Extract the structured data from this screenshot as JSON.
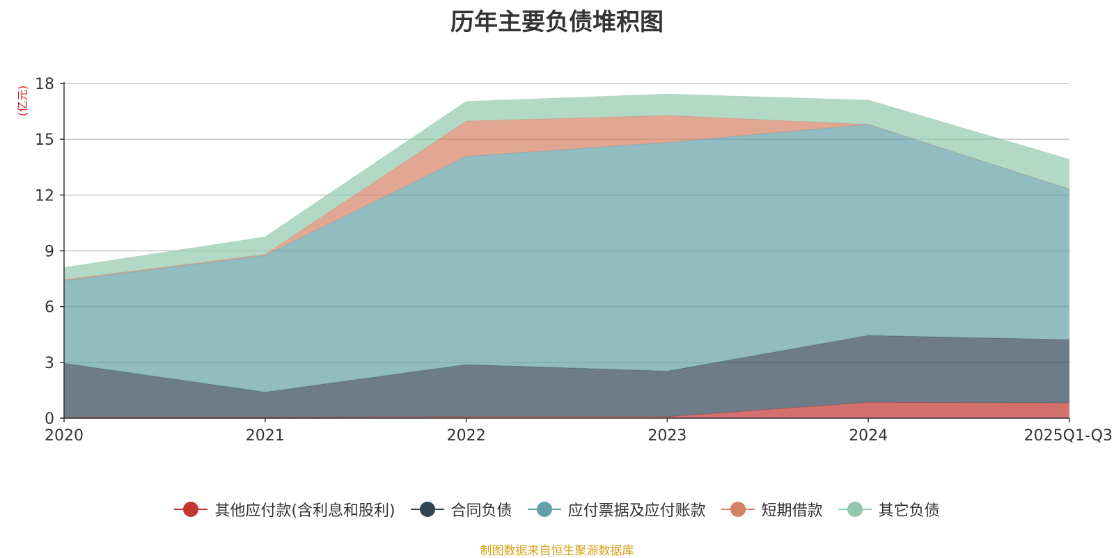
{
  "chart_data": {
    "type": "area",
    "stacked": true,
    "title": "历年主要负债堆积图",
    "ylabel": "(亿元)",
    "xlabel": "",
    "categories": [
      "2020",
      "2021",
      "2022",
      "2023",
      "2024",
      "2025Q1-Q3"
    ],
    "ylim": [
      0,
      18
    ],
    "yticks": [
      0,
      3,
      6,
      9,
      12,
      15,
      18
    ],
    "grid": true,
    "legend_position": "bottom",
    "series": [
      {
        "name": "其他应付款(含利息和股利)",
        "color": "#c23531",
        "values": [
          0.05,
          0.05,
          0.08,
          0.08,
          0.85,
          0.82
        ]
      },
      {
        "name": "合同负债",
        "color": "#2f4554",
        "values": [
          2.9,
          1.35,
          2.8,
          2.45,
          3.6,
          3.4
        ]
      },
      {
        "name": "应付票据及应付账款",
        "color": "#61a0a8",
        "values": [
          4.45,
          7.35,
          11.2,
          12.3,
          11.35,
          8.1
        ]
      },
      {
        "name": "短期借款",
        "color": "#d48265",
        "values": [
          0.05,
          0.05,
          1.9,
          1.45,
          0.0,
          0.0
        ]
      },
      {
        "name": "其它负债",
        "color": "#91c7ae",
        "values": [
          0.65,
          0.95,
          1.05,
          1.15,
          1.3,
          1.6
        ]
      }
    ]
  },
  "footer": "制图数据来自恒生聚源数据库"
}
